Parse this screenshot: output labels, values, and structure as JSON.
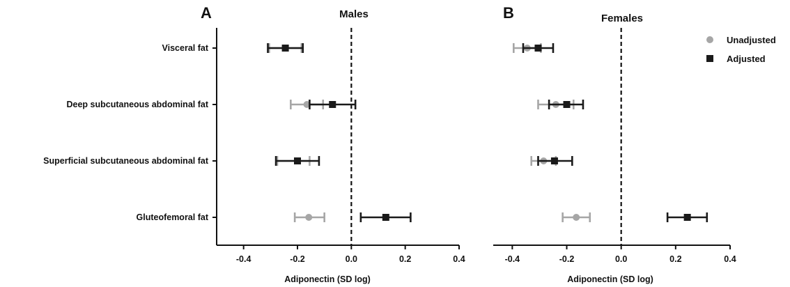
{
  "chart_data": [
    {
      "type": "forest",
      "panel": "A",
      "title": "Males",
      "xlabel": "Adiponectin (SD log)",
      "xlim": [
        -0.5,
        0.4
      ],
      "xticks": [
        "-0.4",
        "-0.2",
        "0.0",
        "0.2",
        "0.4"
      ],
      "xtick_values": [
        -0.4,
        -0.2,
        0.0,
        0.2,
        0.4
      ],
      "categories": [
        "Visceral fat",
        "Deep subcutaneous abdominal fat",
        "Superficial subcutaneous abdominal fat",
        "Gluteofemoral fat"
      ],
      "reference_line": 0.0,
      "series": [
        {
          "name": "Unadjusted",
          "color": "#a6a6a6",
          "marker": "circle",
          "estimates": [
            -0.245,
            -0.165,
            -0.2,
            -0.158
          ],
          "ci_low": [
            -0.305,
            -0.225,
            -0.275,
            -0.21
          ],
          "ci_high": [
            -0.185,
            -0.105,
            -0.155,
            -0.1
          ]
        },
        {
          "name": "Adjusted",
          "color": "#1a1a1a",
          "marker": "square",
          "estimates": [
            -0.245,
            -0.07,
            -0.2,
            0.128
          ],
          "ci_low": [
            -0.31,
            -0.155,
            -0.28,
            0.035
          ],
          "ci_high": [
            -0.18,
            0.015,
            -0.12,
            0.22
          ]
        }
      ]
    },
    {
      "type": "forest",
      "panel": "B",
      "title": "Females",
      "xlabel": "Adiponectin (SD log)",
      "xlim": [
        -0.47,
        0.4
      ],
      "xticks": [
        "-0.4",
        "-0.2",
        "0.0",
        "0.2",
        "0.4"
      ],
      "xtick_values": [
        -0.4,
        -0.2,
        0.0,
        0.2,
        0.4
      ],
      "reference_line": 0.0,
      "series": [
        {
          "name": "Unadjusted",
          "color": "#a6a6a6",
          "marker": "circle",
          "estimates": [
            -0.345,
            -0.24,
            -0.285,
            -0.165
          ],
          "ci_low": [
            -0.395,
            -0.305,
            -0.33,
            -0.215
          ],
          "ci_high": [
            -0.295,
            -0.175,
            -0.24,
            -0.115
          ]
        },
        {
          "name": "Adjusted",
          "color": "#1a1a1a",
          "marker": "square",
          "estimates": [
            -0.305,
            -0.2,
            -0.245,
            0.243
          ],
          "ci_low": [
            -0.36,
            -0.265,
            -0.305,
            0.17
          ],
          "ci_high": [
            -0.25,
            -0.14,
            -0.18,
            0.315
          ]
        }
      ]
    }
  ],
  "legend": {
    "placement": "top-right",
    "items": [
      {
        "label": "Unadjusted",
        "marker": "circle",
        "color": "#a6a6a6"
      },
      {
        "label": "Adjusted",
        "marker": "square",
        "color": "#1a1a1a"
      }
    ]
  }
}
